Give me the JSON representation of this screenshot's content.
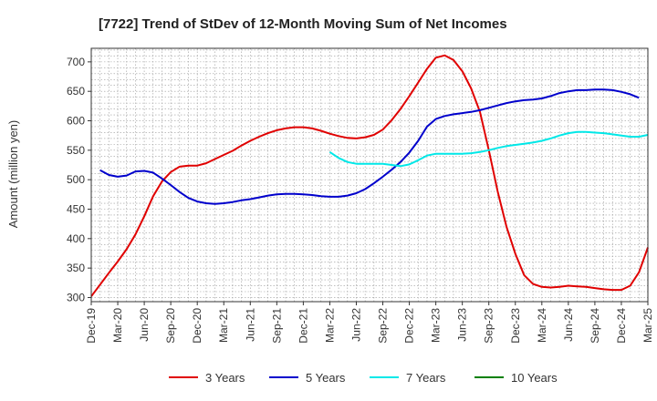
{
  "chart_data": {
    "type": "line",
    "title": "[7722]  Trend of StDev of 12-Month Moving Sum of Net Incomes",
    "xlabel": "",
    "ylabel": "Amount (million yen)",
    "ylim": [
      293,
      723
    ],
    "yticks": [
      300,
      350,
      400,
      450,
      500,
      550,
      600,
      650,
      700
    ],
    "x_start": "2019-12",
    "x_end": "2025-03",
    "x_tick_labels": [
      "Dec-19",
      "Mar-20",
      "Jun-20",
      "Sep-20",
      "Dec-20",
      "Mar-21",
      "Jun-21",
      "Sep-21",
      "Dec-21",
      "Mar-22",
      "Jun-22",
      "Sep-22",
      "Dec-22",
      "Mar-23",
      "Jun-23",
      "Sep-23",
      "Dec-23",
      "Mar-24",
      "Jun-24",
      "Sep-24",
      "Dec-24",
      "Mar-25"
    ],
    "grid": true,
    "legend_position": "bottom",
    "series": [
      {
        "name": "3 Years",
        "color": "#e00000",
        "start": "2019-12",
        "values": [
          302,
          322,
          342,
          361,
          382,
          407,
          438,
          472,
          497,
          513,
          522,
          524,
          524,
          528,
          535,
          542,
          549,
          558,
          566,
          573,
          579,
          584,
          587,
          589,
          589,
          587,
          583,
          578,
          574,
          571,
          570,
          572,
          576,
          585,
          601,
          620,
          642,
          665,
          688,
          707,
          711,
          703,
          684,
          655,
          615,
          550,
          480,
          420,
          374,
          338,
          323,
          318,
          317,
          318,
          320,
          319,
          318,
          316,
          314,
          313,
          313,
          320,
          343,
          385
        ]
      },
      {
        "name": "5 Years",
        "color": "#0000cc",
        "start": "2020-01",
        "values": [
          516,
          508,
          505,
          507,
          514,
          515,
          512,
          502,
          491,
          479,
          469,
          463,
          460,
          459,
          460,
          462,
          465,
          467,
          470,
          473,
          475,
          476,
          476,
          475,
          474,
          472,
          471,
          471,
          473,
          477,
          484,
          494,
          505,
          517,
          530,
          546,
          566,
          590,
          603,
          608,
          611,
          613,
          615,
          618,
          622,
          626,
          630,
          633,
          635,
          636,
          638,
          642,
          647,
          650,
          652,
          652,
          653,
          653,
          652,
          649,
          645,
          639
        ]
      },
      {
        "name": "7 Years",
        "color": "#00e8e8",
        "start": "2022-03",
        "values": [
          547,
          537,
          530,
          527,
          527,
          527,
          527,
          525,
          523,
          526,
          533,
          541,
          544,
          544,
          544,
          544,
          545,
          547,
          550,
          554,
          557,
          559,
          561,
          563,
          566,
          570,
          575,
          579,
          581,
          581,
          580,
          579,
          577,
          575,
          573,
          573,
          576
        ]
      },
      {
        "name": "10 Years",
        "color": "#008000",
        "start": "2022-03",
        "values": []
      }
    ]
  }
}
